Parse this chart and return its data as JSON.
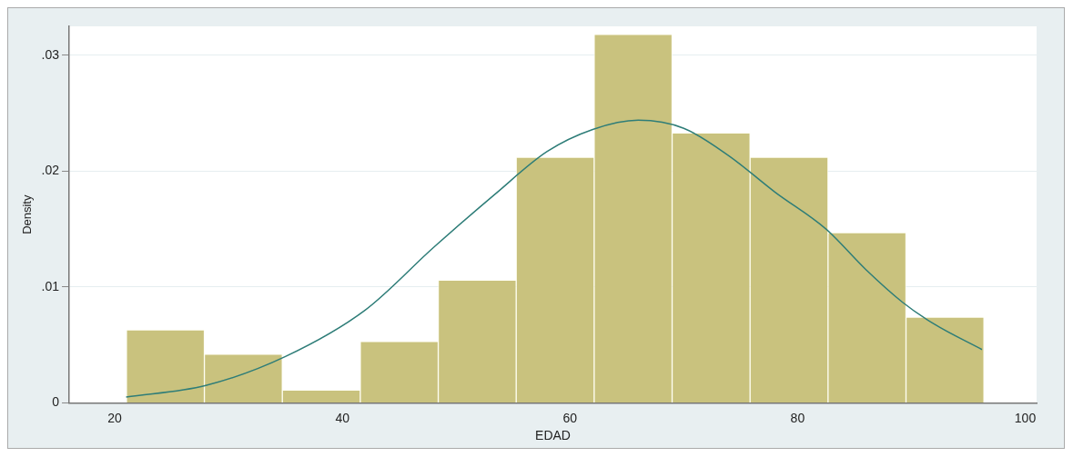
{
  "chart_data": {
    "type": "histogram",
    "xlabel": "EDAD",
    "ylabel": "Density",
    "bins": [
      21,
      27.9,
      34.7,
      41.6,
      48.4,
      55.3,
      62.1,
      69,
      75.8,
      82.7,
      89.5,
      96.4
    ],
    "values": [
      0.0063,
      0.0042,
      0.0011,
      0.0053,
      0.0106,
      0.0212,
      0.0318,
      0.0233,
      0.0212,
      0.0147,
      0.0074
    ],
    "color": "#c9c27e",
    "series": [
      {
        "type": "line",
        "color": "#2e7d78",
        "x": [
          21,
          28,
          35,
          42,
          48,
          53.4,
          58,
          62,
          66,
          70,
          74,
          78,
          82.5,
          86,
          89.2,
          92,
          96.2
        ],
        "values": [
          0.0005,
          0.0015,
          0.004,
          0.008,
          0.0134,
          0.018,
          0.0217,
          0.0236,
          0.0244,
          0.0237,
          0.0213,
          0.0182,
          0.015,
          0.0115,
          0.0087,
          0.0068,
          0.0046
        ]
      }
    ],
    "xlim": [
      16,
      101
    ],
    "xticks": [
      20,
      40,
      60,
      80,
      100
    ],
    "ylim": [
      0,
      0.0325
    ],
    "yticks": [
      0,
      {
        "value": 0.01,
        "label": ".01"
      },
      {
        "value": 0.02,
        "label": ".02"
      },
      {
        "value": 0.03,
        "label": ".03"
      }
    ],
    "grid": "y",
    "legend": false,
    "marker": "none"
  }
}
